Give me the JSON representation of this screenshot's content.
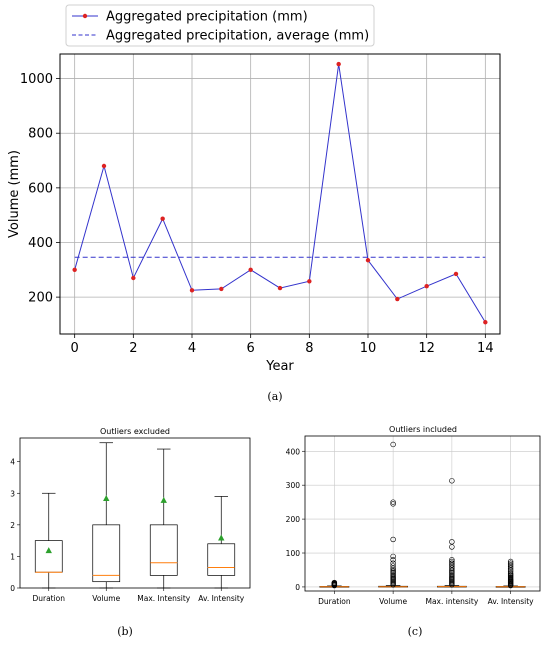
{
  "chart_data": [
    {
      "panel": "(a)",
      "type": "line",
      "xlabel": "Year",
      "ylabel": "Volume (mm)",
      "xlim": [
        -0.5,
        14.5
      ],
      "ylim": [
        65,
        1090
      ],
      "xticks": [
        0,
        2,
        4,
        6,
        8,
        10,
        12,
        14
      ],
      "yticks": [
        200,
        400,
        600,
        800,
        1000
      ],
      "grid": true,
      "legend_position": "top-left",
      "series": [
        {
          "name": "Aggregated precipitation (mm)",
          "color": "#3333cc",
          "marker_color": "#dd2222",
          "x": [
            0,
            1,
            2,
            3,
            4,
            5,
            6,
            7,
            8,
            9,
            10,
            11,
            12,
            13,
            14
          ],
          "values": [
            300,
            680,
            270,
            487,
            225,
            230,
            300,
            233,
            258,
            1053,
            335,
            193,
            240,
            285,
            108
          ]
        },
        {
          "name": "Aggregated precipitation, average (mm)",
          "color": "#3333cc",
          "style": "dashed",
          "x": [
            0,
            14
          ],
          "values": [
            346,
            346
          ]
        }
      ]
    },
    {
      "panel": "(b)",
      "type": "box",
      "title": "Outliers excluded",
      "categories": [
        "Duration",
        "Volume",
        "Max. Intensity",
        "Av. Intensity"
      ],
      "ylim": [
        0,
        4.75
      ],
      "yticks": [
        0,
        1,
        2,
        3,
        4
      ],
      "grid": false,
      "mean_color": "#2ca02c",
      "median_color": "#ff7f0e",
      "boxes": [
        {
          "whislo": 0.0,
          "q1": 0.5,
          "median": 0.5,
          "q3": 1.5,
          "whishi": 3.0,
          "mean": 1.18
        },
        {
          "whislo": 0.0,
          "q1": 0.2,
          "median": 0.4,
          "q3": 2.0,
          "whishi": 4.6,
          "mean": 2.83
        },
        {
          "whislo": 0.0,
          "q1": 0.4,
          "median": 0.8,
          "q3": 2.0,
          "whishi": 4.4,
          "mean": 2.77
        },
        {
          "whislo": 0.0,
          "q1": 0.4,
          "median": 0.65,
          "q3": 1.4,
          "whishi": 2.9,
          "mean": 1.58
        }
      ]
    },
    {
      "panel": "(c)",
      "type": "box",
      "title": "Outliers included",
      "categories": [
        "Duration",
        "Volume",
        "Max. intensity",
        "Av. Intensity"
      ],
      "ylim": [
        -12,
        445
      ],
      "yticks": [
        0,
        100,
        200,
        300,
        400
      ],
      "grid": true,
      "median_color": "#ff7f0e",
      "boxes": [
        {
          "whislo": 0,
          "q1": 0.5,
          "median": 0.5,
          "q3": 1.5,
          "whishi": 3,
          "fliers": [
            4,
            5,
            6,
            7,
            8,
            9,
            10,
            11,
            12,
            13
          ]
        },
        {
          "whislo": 0,
          "q1": 0.2,
          "median": 0.4,
          "q3": 2.0,
          "whishi": 4.6,
          "fliers": [
            6,
            9,
            12,
            15,
            18,
            21,
            24,
            27,
            30,
            34,
            38,
            42,
            46,
            50,
            55,
            62,
            70,
            80,
            90,
            140,
            245,
            250,
            420
          ]
        },
        {
          "whislo": 0,
          "q1": 0.4,
          "median": 0.8,
          "q3": 2.0,
          "whishi": 4.4,
          "fliers": [
            6,
            9,
            12,
            15,
            18,
            21,
            24,
            27,
            30,
            34,
            38,
            42,
            46,
            50,
            55,
            60,
            65,
            70,
            75,
            80,
            118,
            133,
            313
          ]
        },
        {
          "whislo": 0,
          "q1": 0.4,
          "median": 0.65,
          "q3": 1.4,
          "whishi": 2.9,
          "fliers": [
            4,
            6,
            8,
            10,
            12,
            14,
            16,
            18,
            20,
            22,
            25,
            28,
            31,
            34,
            37,
            40,
            45,
            50,
            55,
            60,
            65,
            70,
            75
          ]
        }
      ]
    }
  ],
  "captions": {
    "a": "(a)",
    "b": "(b)",
    "c": "(c)"
  }
}
